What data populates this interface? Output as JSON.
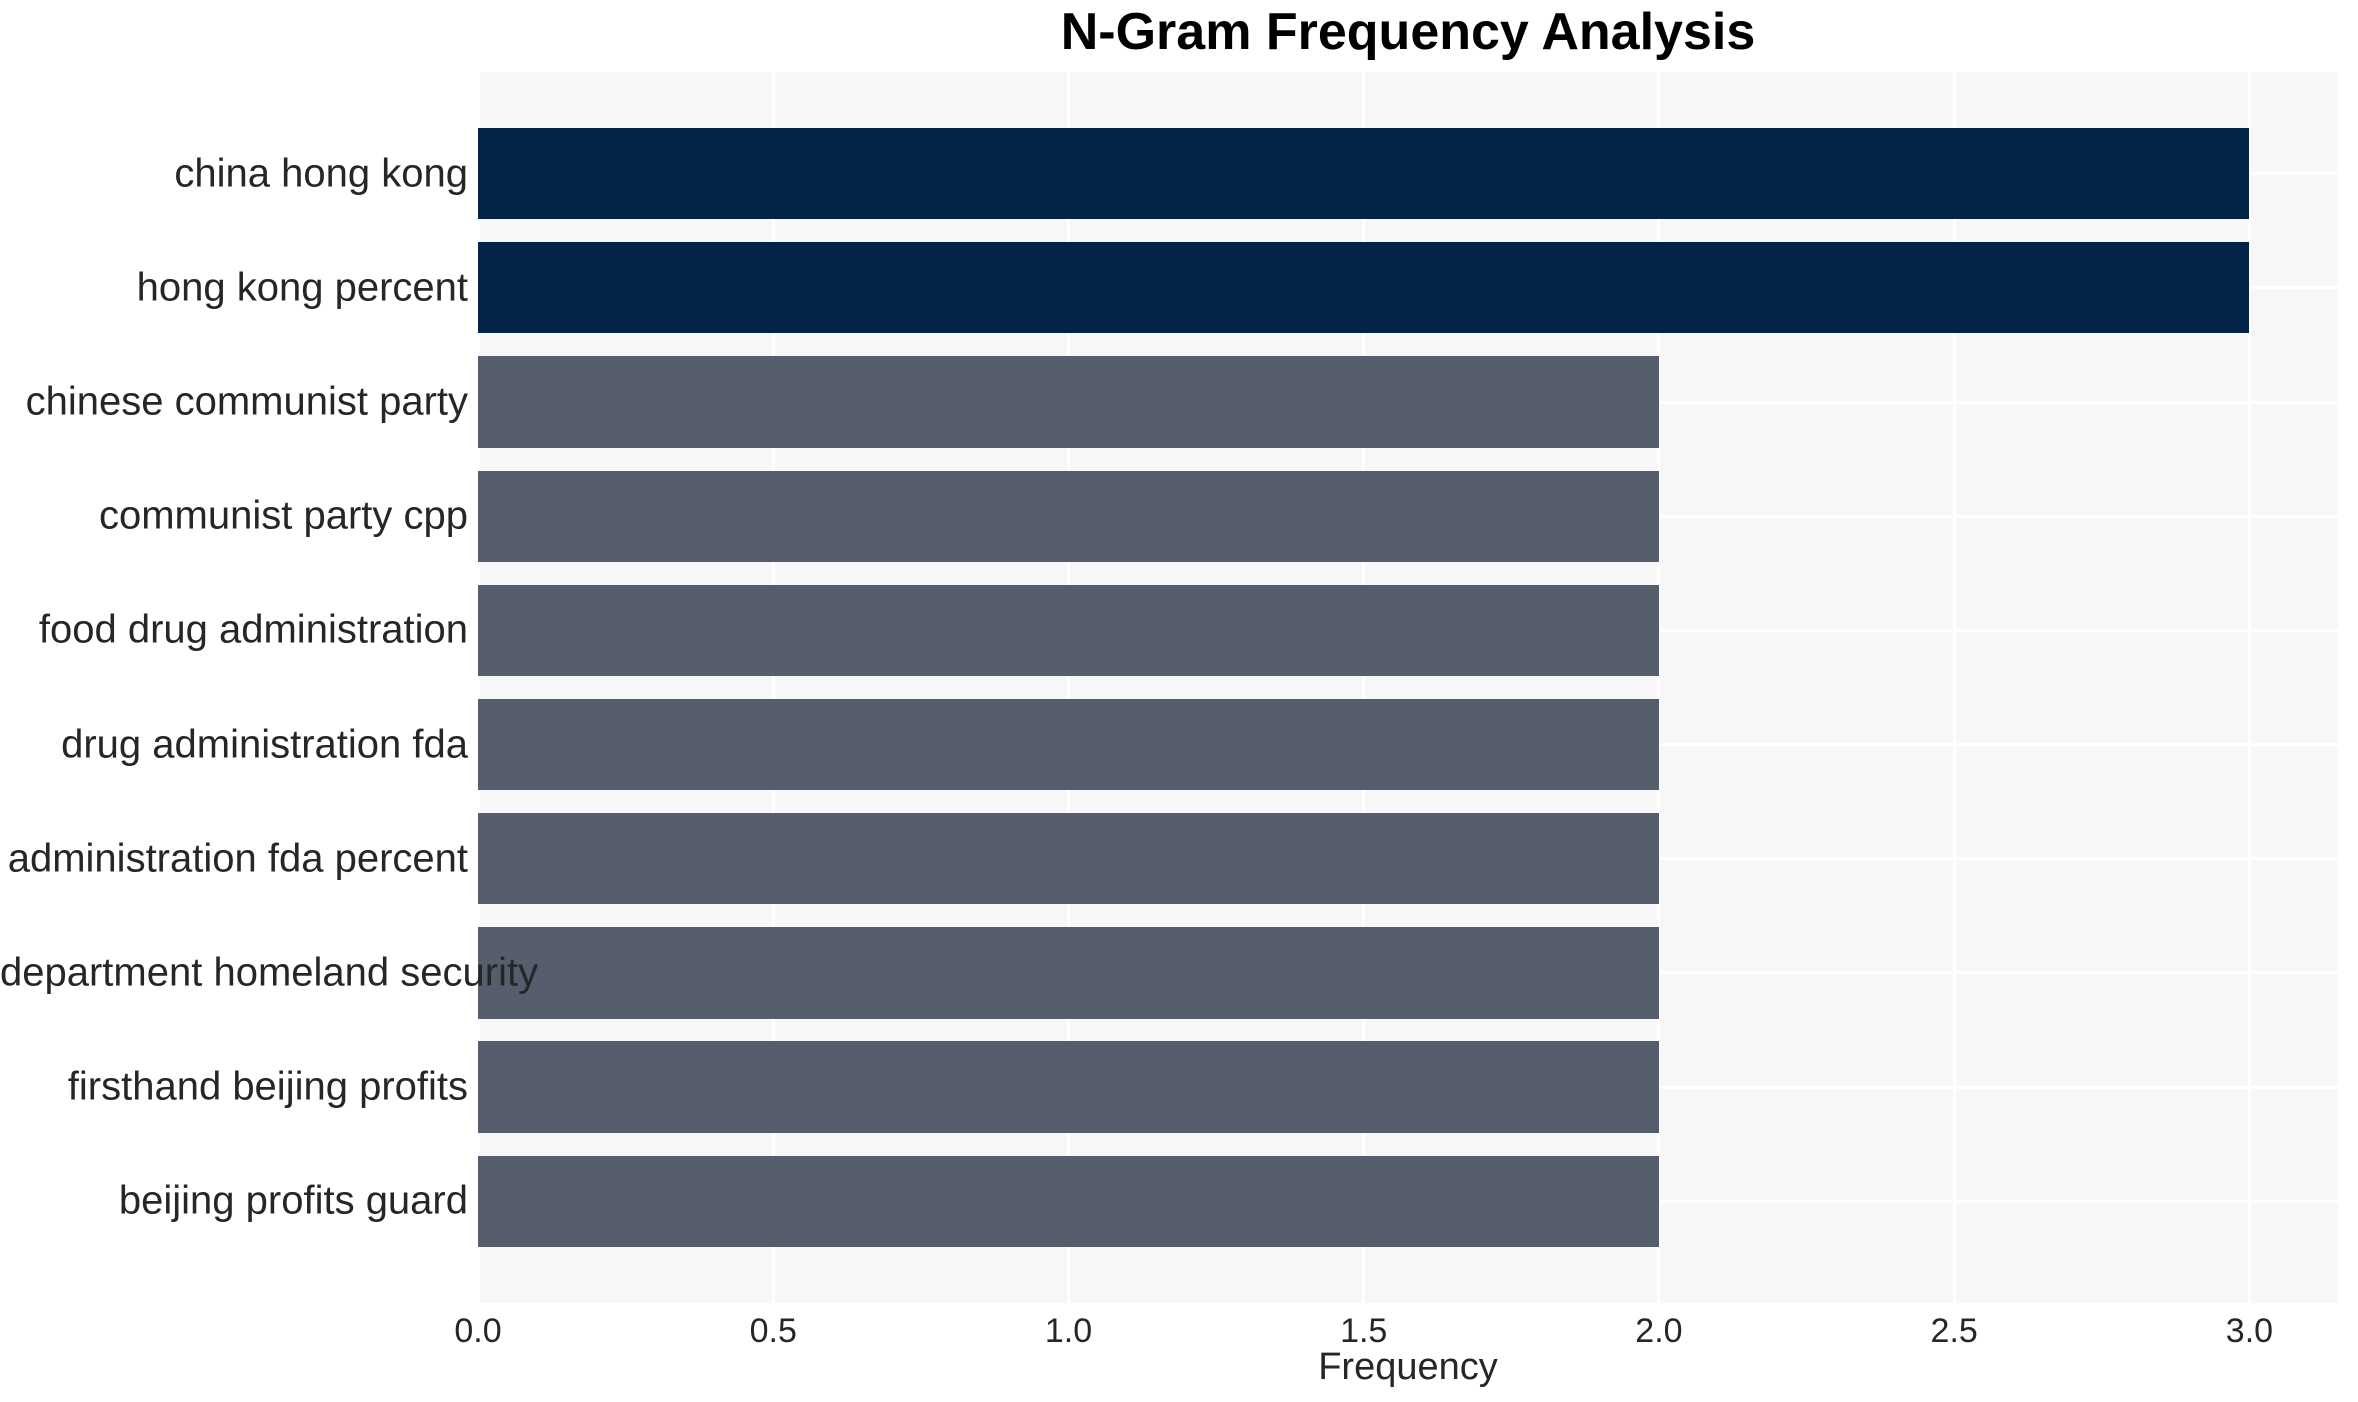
{
  "chart_data": {
    "type": "bar",
    "orientation": "horizontal",
    "title": "N-Gram Frequency Analysis",
    "xlabel": "Frequency",
    "ylabel": "",
    "categories": [
      "china hong kong",
      "hong kong percent",
      "chinese communist party",
      "communist party cpp",
      "food drug administration",
      "drug administration fda",
      "administration fda percent",
      "department homeland security",
      "firsthand beijing profits",
      "beijing profits guard"
    ],
    "values": [
      3,
      3,
      2,
      2,
      2,
      2,
      2,
      2,
      2,
      2
    ],
    "colors": [
      "#032349",
      "#032349",
      "#565d6c",
      "#565d6c",
      "#565d6c",
      "#565d6c",
      "#565d6c",
      "#565d6c",
      "#565d6c",
      "#565d6c"
    ],
    "xlim": [
      0,
      3.15
    ],
    "x_tick_values": [
      0,
      0.5,
      1.0,
      1.5,
      2.0,
      2.5,
      3.0
    ],
    "x_tick_labels": [
      "0.0",
      "0.5",
      "1.0",
      "1.5",
      "2.0",
      "2.5",
      "3.0"
    ],
    "grid": true,
    "grid_color": "#ffffff",
    "plot_background": "#f7f7f8",
    "bar_color_high": "#032349",
    "bar_color_normal": "#565d6c",
    "text_color": "#262626",
    "legend": "none"
  }
}
